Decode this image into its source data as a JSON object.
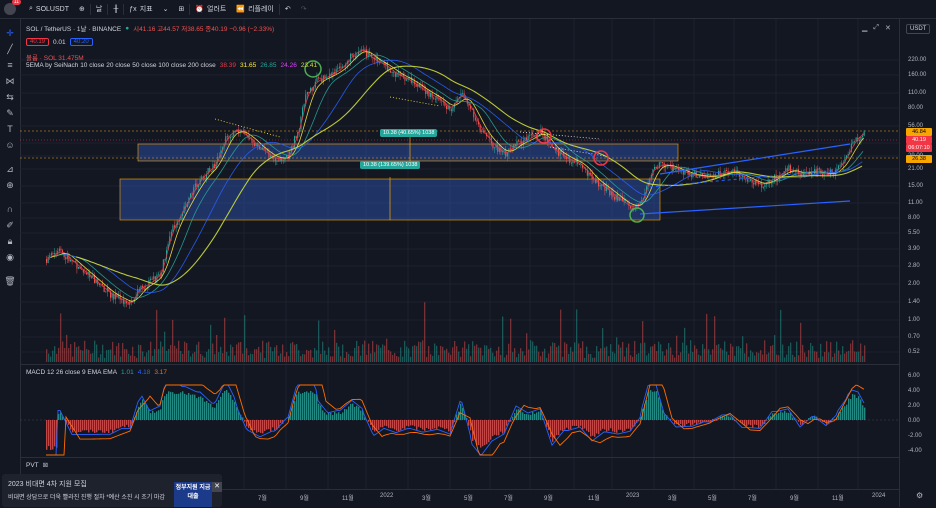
{
  "topbar": {
    "symbol": "SOLUSDT",
    "interval": "날",
    "indicators_label": "지표",
    "alert_label": "얼러트",
    "replay_label": "리플레이",
    "notif_count": "11"
  },
  "legend": {
    "title": "SOL / TetherUS · 1날 · BINANCE",
    "ohlc": "시41.16 고44.57 저38.65 종40.19 −0.96 (−2.33%)",
    "sell_price": "40.19",
    "spread": "0.01",
    "buy_price": "40.20",
    "volume": "볼륨 · SOL  31.475M",
    "ema_label": "5EMA by SeiNach 10 close 20 close 50 close 100 close 200 close",
    "ema_values": [
      {
        "value": "38.39",
        "color": "#f23645"
      },
      {
        "value": "31.65",
        "color": "#ffeb3b"
      },
      {
        "value": "26.85",
        "color": "#26a69a"
      },
      {
        "value": "24.26",
        "color": "#e040fb"
      },
      {
        "value": "23.41",
        "color": "#cddc39"
      }
    ]
  },
  "price_axis": {
    "currency": "USDT",
    "labels": [
      "220.00",
      "160.00",
      "110.00",
      "80.00",
      "56.00",
      "40.19",
      "29.00",
      "21.00",
      "15.00",
      "11.00",
      "8.00",
      "5.50",
      "3.90",
      "2.80",
      "2.00",
      "1.40",
      "1.00",
      "0.70",
      "0.52"
    ],
    "current_price": "40.19",
    "countdown": "06:07:10",
    "level_high": "46.84",
    "level_low": "26.38"
  },
  "measure": {
    "upper": "10.38 (40.65%) 1038",
    "lower": "10.38 (139.65%) 1038"
  },
  "macd": {
    "label": "MACD 12 26 close 9 EMA EMA",
    "values": [
      {
        "value": "1.01",
        "color": "#26a69a"
      },
      {
        "value": "4.18",
        "color": "#2962ff"
      },
      {
        "value": "3.17",
        "color": "#ff6d00"
      }
    ],
    "axis_labels": [
      "6.00",
      "4.00",
      "2.00",
      "0.00",
      "-2.00",
      "-4.00"
    ]
  },
  "pvt": {
    "label": "PVT"
  },
  "time_axis": [
    "7월",
    "9월",
    "11월",
    "2022",
    "3월",
    "5월",
    "7월",
    "9월",
    "11월",
    "2023",
    "3월",
    "5월",
    "7월",
    "9월",
    "11월",
    "2024"
  ],
  "ad": {
    "title": "2023 비대면 4차 지원 모집",
    "body": "비대면 상담으로 더욱 빨라진 진행 절차 *예산 소진 시 조기 마감",
    "image_text": "정부지원 지금대출"
  },
  "colors": {
    "up": "#26a69a",
    "down": "#ef5350",
    "box": "#2a4a9c"
  }
}
